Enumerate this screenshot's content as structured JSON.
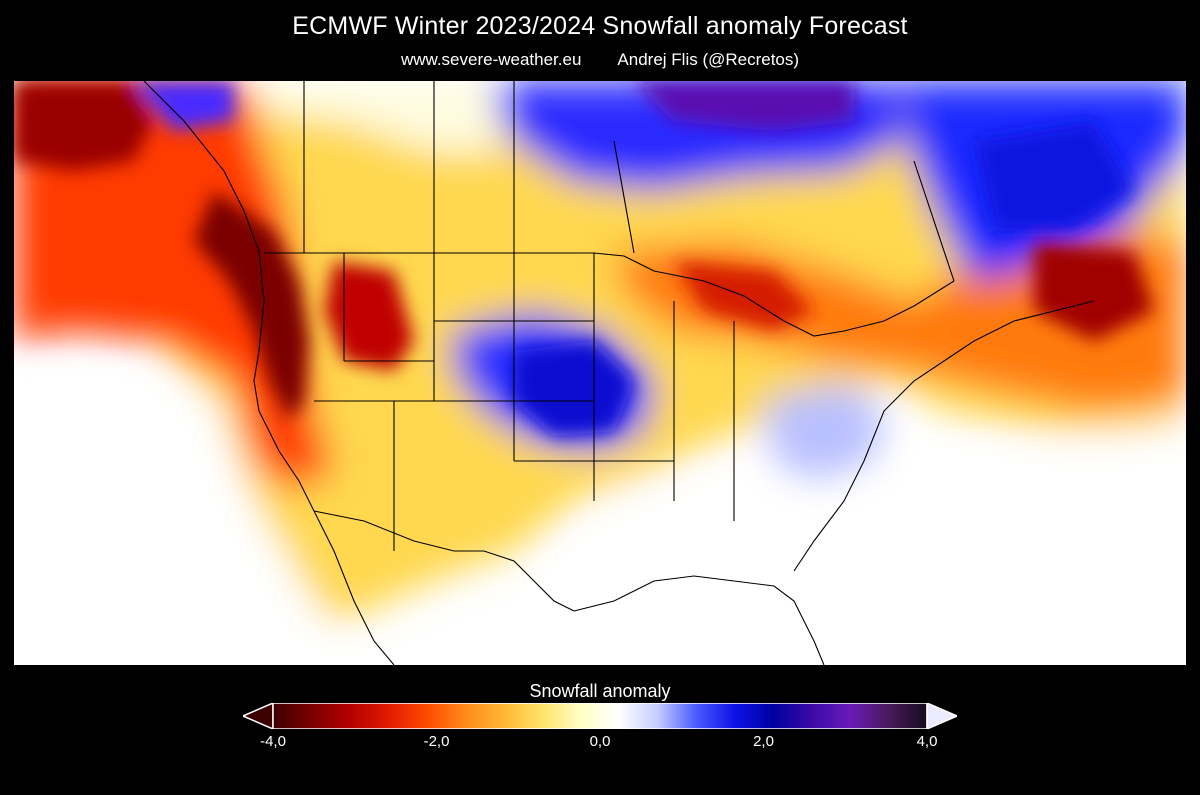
{
  "header": {
    "title": "ECMWF Winter 2023/2024 Snowfall anomaly Forecast",
    "source_site": "www.severe-weather.eu",
    "author": "Andrej Flis (@Recretos)"
  },
  "colorbar": {
    "label": "Snowfall anomaly",
    "min": -4.0,
    "max": 4.0,
    "ticks": [
      {
        "value": -4.0,
        "label": "-4,0"
      },
      {
        "value": -2.0,
        "label": "-2,0"
      },
      {
        "value": 0.0,
        "label": "0,0"
      },
      {
        "value": 2.0,
        "label": "2,0"
      },
      {
        "value": 4.0,
        "label": "4,0"
      }
    ],
    "colors": [
      "#3c0000",
      "#7a0000",
      "#b40000",
      "#e11a00",
      "#ff4a00",
      "#ff8a1a",
      "#ffb733",
      "#ffe36a",
      "#ffffc4",
      "#ffffff",
      "#c4ccff",
      "#4a5aff",
      "#0d12e6",
      "#0000a0",
      "#3a0aa8",
      "#6a1ab8",
      "#4a1a5a",
      "#180a20"
    ],
    "extend_low_color": "#3c0000",
    "extend_high_color": "#eceaff"
  },
  "map": {
    "region": "North America",
    "background": "#ffffff",
    "border_color": "#000000"
  }
}
